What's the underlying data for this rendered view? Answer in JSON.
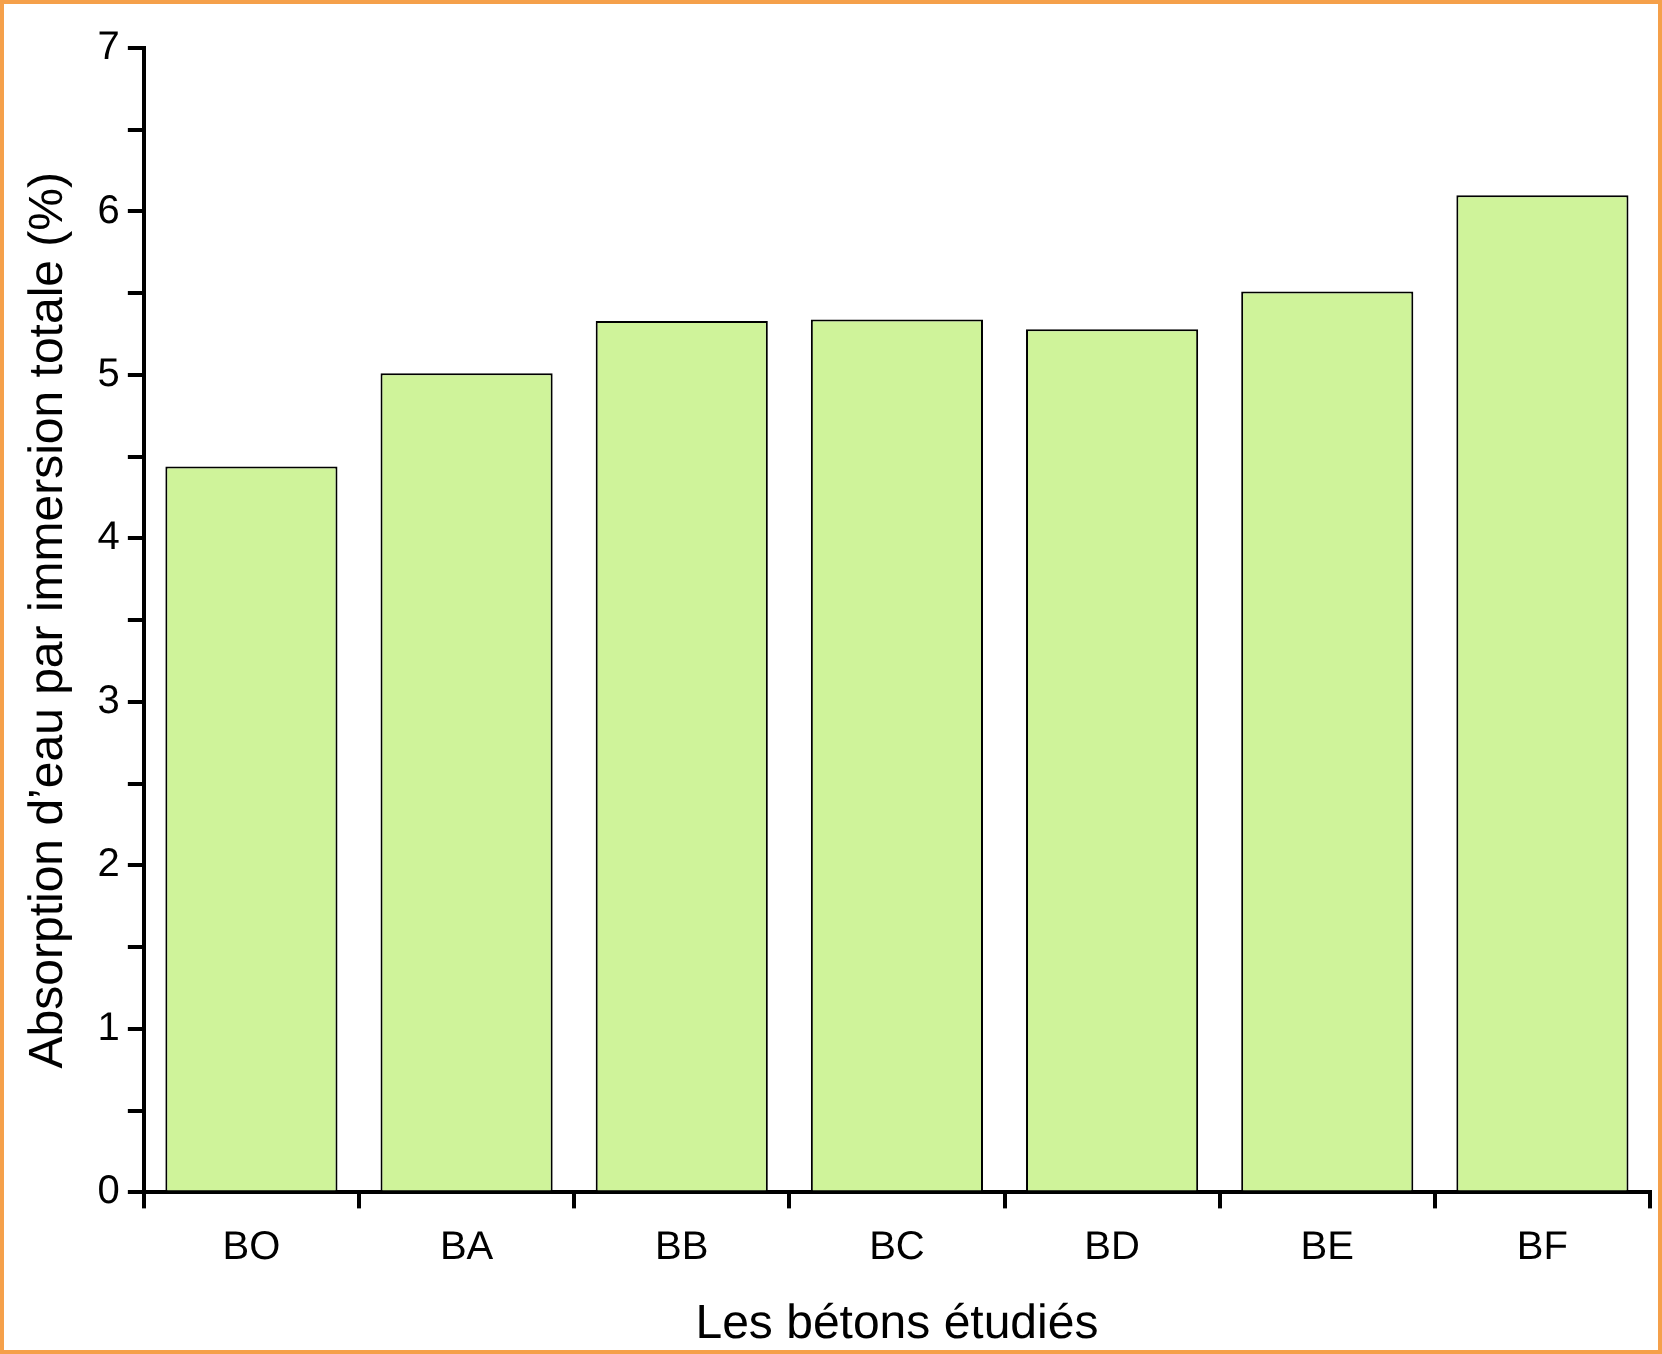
{
  "chart_data": {
    "type": "bar",
    "xlabel": "Les bétons étudiés",
    "ylabel": "Absorption d’eau par immersion totale (%)",
    "categories": [
      "BO",
      "BA",
      "BB",
      "BC",
      "BD",
      "BE",
      "BF"
    ],
    "values": [
      4.44,
      5.01,
      5.33,
      5.34,
      5.28,
      5.51,
      6.1
    ],
    "color": "#cff39a",
    "ylim": [
      0,
      7
    ],
    "yticks": [
      0,
      {
        "value": 0.5,
        "label": null
      },
      1,
      {
        "value": 1.5,
        "label": null
      },
      2,
      {
        "value": 2.5,
        "label": null
      },
      3,
      {
        "value": 3.5,
        "label": null
      },
      4,
      {
        "value": 4.5,
        "label": null
      },
      5,
      {
        "value": 5.5,
        "label": null
      },
      6,
      {
        "value": 6.5,
        "label": null
      },
      7
    ],
    "grid": false,
    "legend": false
  }
}
